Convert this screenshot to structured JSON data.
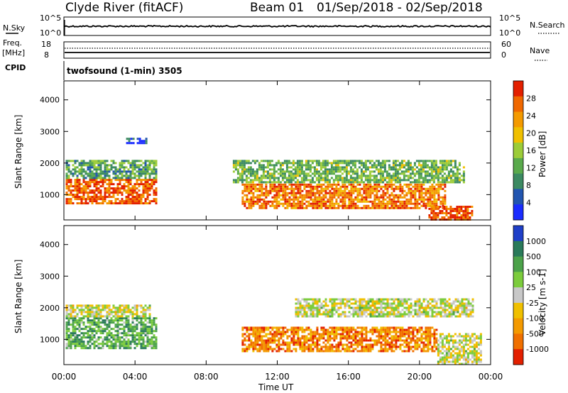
{
  "header": {
    "station": "Clyde River (fitACF)",
    "beam": "Beam 01",
    "date_range": "01/Sep/2018 - 02/Sep/2018"
  },
  "top_panels": {
    "nsky_label": "N.Sky",
    "nsky_ticks": [
      "10^5",
      "10^0"
    ],
    "nsearch_label": "N.Search",
    "nsearch_ticks": [
      "10^5",
      "10^0"
    ],
    "freq_label": "Freq.",
    "freq_unit": "[MHz]",
    "freq_ticks": [
      "18",
      "8"
    ],
    "nave_label": "Nave",
    "nave_ticks": [
      "60",
      "0"
    ],
    "cpid_label": "CPID",
    "cpid_text": "twofsound (1-min) 3505"
  },
  "chart_data": [
    {
      "type": "heatmap",
      "ylabel": "Slant Range [km]",
      "ylim": [
        200,
        4600
      ],
      "y_ticks": [
        "1000",
        "2000",
        "3000",
        "4000"
      ],
      "colorbar_label": "Power [dB]",
      "colorbar_ticks": [
        "4",
        "8",
        "12",
        "16",
        "20",
        "24",
        "28"
      ],
      "colors": [
        "#1a2cff",
        "#2255b0",
        "#3c8a62",
        "#5aaa4c",
        "#9ccc38",
        "#f0c000",
        "#f49a00",
        "#f06800",
        "#e32000"
      ],
      "regions": [
        {
          "x0": 0.1,
          "x1": 5.2,
          "y0": 700,
          "y1": 1500,
          "level": 0.85
        },
        {
          "x0": 0.1,
          "x1": 5.2,
          "y0": 1500,
          "y1": 2100,
          "level": 0.35
        },
        {
          "x0": 10.0,
          "x1": 21.5,
          "y0": 600,
          "y1": 1350,
          "level": 0.8
        },
        {
          "x0": 9.5,
          "x1": 22.5,
          "y0": 1400,
          "y1": 2100,
          "level": 0.4
        },
        {
          "x0": 20.5,
          "x1": 23.0,
          "y0": 200,
          "y1": 650,
          "level": 0.9
        },
        {
          "x0": 3.5,
          "x1": 4.6,
          "y0": 2650,
          "y1": 2800,
          "level": 0.15
        }
      ]
    },
    {
      "type": "heatmap",
      "ylabel": "Slant Range [km]",
      "ylim": [
        200,
        4600
      ],
      "y_ticks": [
        "1000",
        "2000",
        "3000",
        "4000"
      ],
      "colorbar_label": "Velocity [m s-1]",
      "colorbar_ticks": [
        "1000",
        "500",
        "100",
        "25",
        "-25",
        "-100",
        "-500",
        "-1000"
      ],
      "colors": [
        "#1f3fc8",
        "#2a7a5a",
        "#4ca24a",
        "#7ccc3c",
        "#c8c8c8",
        "#f0c000",
        "#f49a00",
        "#f07000",
        "#e32000"
      ],
      "regions": [
        {
          "x0": 0.1,
          "x1": 5.2,
          "y0": 700,
          "y1": 1700,
          "level": 0.3
        },
        {
          "x0": 0.1,
          "x1": 4.8,
          "y0": 1750,
          "y1": 2100,
          "level": 0.5
        },
        {
          "x0": 10.0,
          "x1": 21.0,
          "y0": 600,
          "y1": 1400,
          "level": 0.78
        },
        {
          "x0": 13.0,
          "x1": 23.0,
          "y0": 1700,
          "y1": 2300,
          "level": 0.5
        },
        {
          "x0": 21.0,
          "x1": 23.5,
          "y0": 250,
          "y1": 1200,
          "level": 0.5
        }
      ]
    }
  ],
  "x_axis": {
    "ticks": [
      "00:00",
      "04:00",
      "08:00",
      "12:00",
      "16:00",
      "20:00",
      "00:00"
    ],
    "label": "Time UT"
  }
}
